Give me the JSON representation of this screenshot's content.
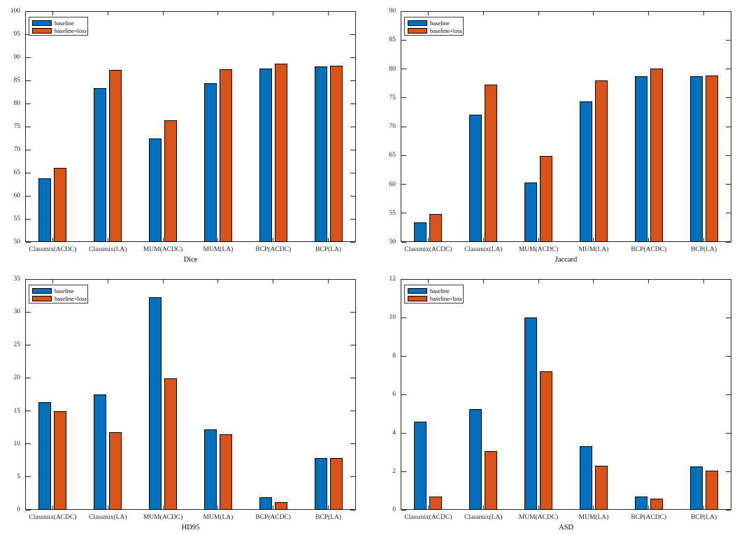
{
  "figure": {
    "background": "#ffffff",
    "axis_line_color": "#262626",
    "tick_label_color": "#262626",
    "bar_edge_color": "#000000"
  },
  "legend": {
    "position": "top-left",
    "items": [
      {
        "label": "baseline",
        "color": "#0072BD"
      },
      {
        "label": "baseline+loss",
        "color": "#D95319"
      }
    ]
  },
  "chart_data": [
    {
      "type": "bar",
      "title": "",
      "xlabel": "Dice",
      "ylabel": "",
      "grid": false,
      "legend_position": "top-left",
      "ylim": [
        50,
        100
      ],
      "ytick_step": 5,
      "categories": [
        "Classmix(ACDC)",
        "Classmix(LA)",
        "MUM(ACDC)",
        "MUM(LA)",
        "BCP(ACDC)",
        "BCP(LA)"
      ],
      "series": [
        {
          "name": "baseline",
          "color": "#0072BD",
          "values": [
            63.8,
            83.3,
            72.4,
            84.4,
            87.6,
            88.0
          ]
        },
        {
          "name": "baseline+loss",
          "color": "#D95319",
          "values": [
            66.0,
            87.2,
            76.4,
            87.5,
            88.6,
            88.2
          ]
        }
      ]
    },
    {
      "type": "bar",
      "title": "",
      "xlabel": "Jaccard",
      "ylabel": "",
      "grid": false,
      "legend_position": "top-left",
      "ylim": [
        50,
        90
      ],
      "ytick_step": 5,
      "categories": [
        "Classmix(ACDC)",
        "Classmix(LA)",
        "MUM(ACDC)",
        "MUM(LA)",
        "BCP(ACDC)",
        "BCP(LA)"
      ],
      "series": [
        {
          "name": "baseline",
          "color": "#0072BD",
          "values": [
            53.4,
            72.1,
            60.3,
            74.4,
            78.7,
            78.7
          ]
        },
        {
          "name": "baseline+loss",
          "color": "#D95319",
          "values": [
            54.9,
            77.3,
            64.9,
            78.0,
            80.1,
            78.9
          ]
        }
      ]
    },
    {
      "type": "bar",
      "title": "",
      "xlabel": "HD95",
      "ylabel": "",
      "grid": false,
      "legend_position": "top-left",
      "ylim": [
        0,
        35
      ],
      "ytick_step": 5,
      "categories": [
        "Classmix(ACDC)",
        "Classmix(LA)",
        "MUM(ACDC)",
        "MUM(LA)",
        "BCP(ACDC)",
        "BCP(LA)"
      ],
      "series": [
        {
          "name": "baseline",
          "color": "#0072BD",
          "values": [
            16.3,
            17.5,
            32.2,
            12.2,
            1.9,
            7.9
          ]
        },
        {
          "name": "baseline+loss",
          "color": "#D95319",
          "values": [
            15.0,
            11.8,
            19.9,
            11.5,
            1.2,
            7.8
          ]
        }
      ]
    },
    {
      "type": "bar",
      "title": "",
      "xlabel": "ASD",
      "ylabel": "",
      "grid": false,
      "legend_position": "top-left",
      "ylim": [
        0,
        12
      ],
      "ytick_step": 2,
      "categories": [
        "Classmix(ACDC)",
        "Classmix(LA)",
        "MUM(ACDC)",
        "MUM(LA)",
        "BCP(ACDC)",
        "BCP(LA)"
      ],
      "series": [
        {
          "name": "baseline",
          "color": "#0072BD",
          "values": [
            4.6,
            5.25,
            10.0,
            3.3,
            0.7,
            2.25
          ]
        },
        {
          "name": "baseline+loss",
          "color": "#D95319",
          "values": [
            0.7,
            3.05,
            7.2,
            2.3,
            0.6,
            2.05
          ]
        }
      ]
    }
  ]
}
